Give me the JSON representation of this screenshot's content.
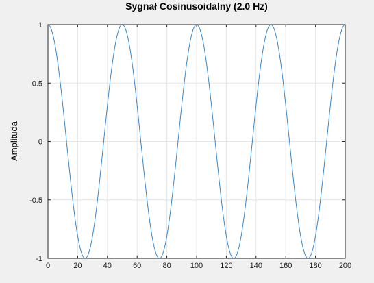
{
  "chart_data": {
    "type": "line",
    "title": "Sygnał Cosinusoidalny (2.0 Hz)",
    "xlabel": "",
    "ylabel": "Amplituda",
    "xlim": [
      0,
      200
    ],
    "ylim": [
      -1,
      1
    ],
    "xticks": [
      0,
      20,
      40,
      60,
      80,
      100,
      120,
      140,
      160,
      180,
      200
    ],
    "yticks": [
      -1,
      -0.5,
      0,
      0.5,
      1
    ],
    "xtick_labels": [
      "0",
      "20",
      "40",
      "60",
      "80",
      "100",
      "120",
      "140",
      "160",
      "180",
      "200"
    ],
    "ytick_labels": [
      "-1",
      "-0.5",
      "0",
      "0.5",
      "1"
    ],
    "grid": true,
    "legend": "none",
    "series": [
      {
        "function": "cos",
        "amplitude": 1,
        "period": 50,
        "x_start": 0,
        "x_end": 200,
        "color": "#3a87c8"
      }
    ]
  },
  "colors": {
    "background": "#f0f0f0",
    "plot_area": "#ffffff",
    "grid": "#e6e6e6",
    "axes": "#262626",
    "line": "#3a87c8"
  }
}
